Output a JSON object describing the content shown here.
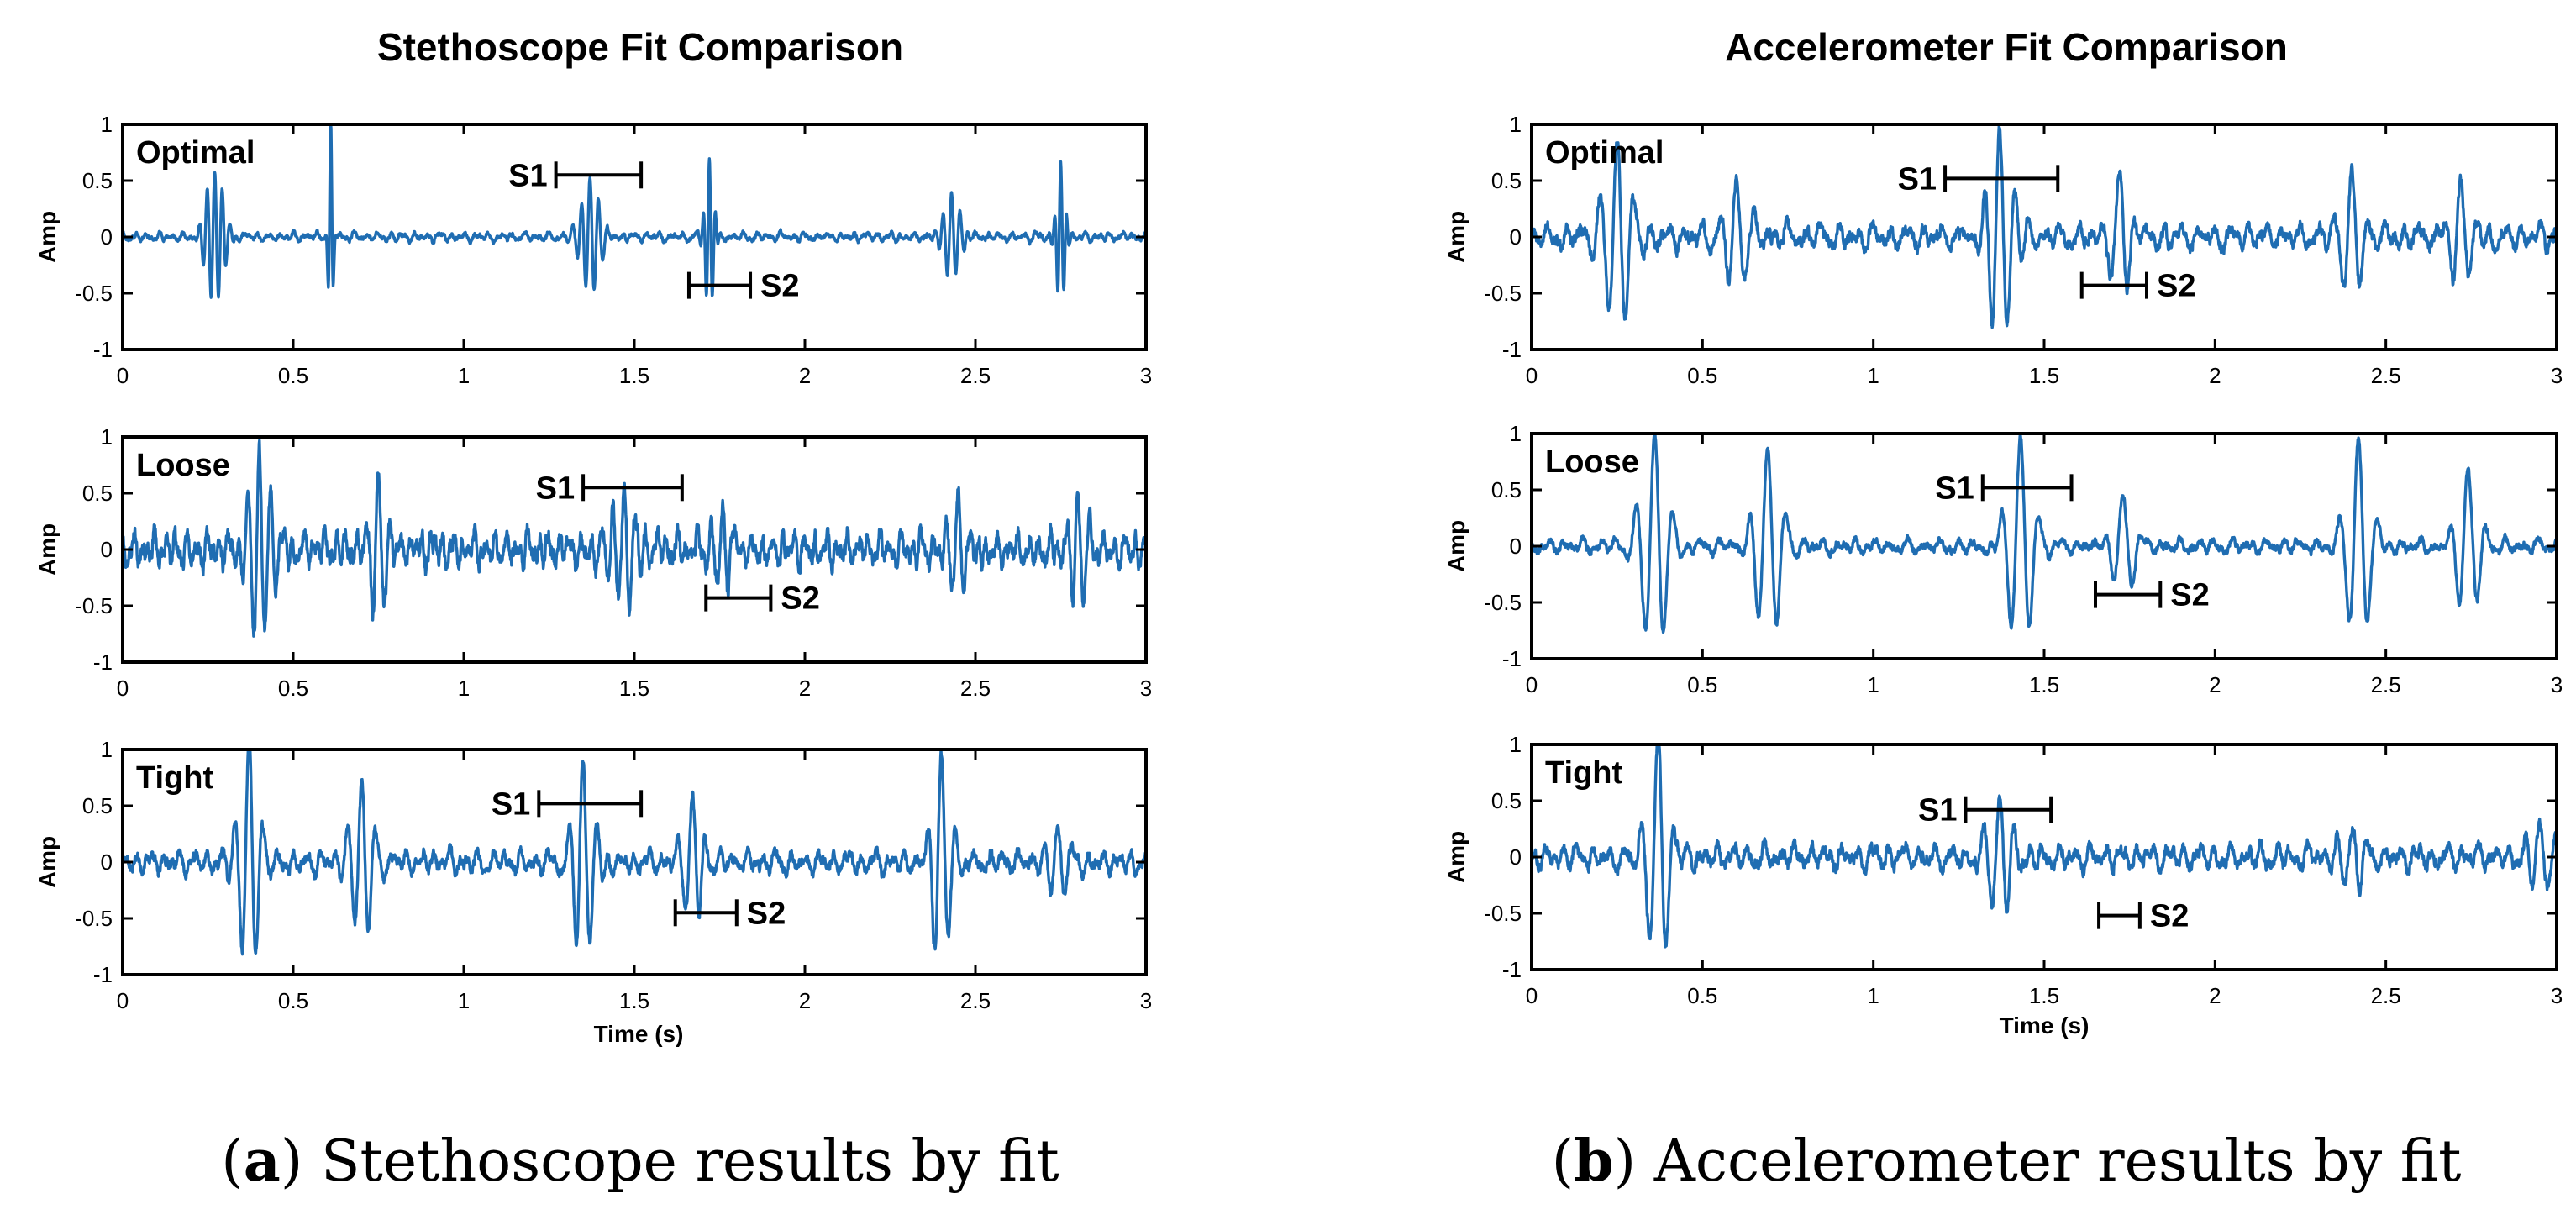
{
  "colors": {
    "trace": "#1f6db2",
    "axis": "#000000",
    "background": "#ffffff"
  },
  "common_axes": {
    "xlim": [
      0,
      3
    ],
    "ylim": [
      -1,
      1
    ],
    "x_ticks": [
      0,
      0.5,
      1,
      1.5,
      2,
      2.5,
      3
    ],
    "x_tick_labels": [
      "0",
      "0.5",
      "1",
      "1.5",
      "2",
      "2.5",
      "3"
    ],
    "y_ticks": [
      1,
      0.5,
      0,
      -0.5,
      -1
    ],
    "y_tick_labels": [
      "1",
      "0.5",
      "0",
      "-0.5",
      "-1"
    ],
    "ylabel": "Amp",
    "xlabel": "Time (s)"
  },
  "captions": {
    "a_letter": "a",
    "a_text": " Stethoscope results by fit",
    "b_letter": "b",
    "b_text": " Accelerometer results by fit"
  },
  "chart_data": [
    {
      "type": "line",
      "title": "Stethoscope Fit Comparison",
      "xlabel": "Time (s)",
      "ylabel": "Amp",
      "panels": [
        {
          "label": "Optimal",
          "xlim": [
            0,
            3
          ],
          "ylim": [
            -1,
            1
          ],
          "noise": 0.035,
          "bg_freq": 28,
          "seed": 11,
          "bursts": [
            {
              "t": 0.27,
              "amp": 0.6,
              "freq": 45,
              "width": 0.025
            },
            {
              "t": 0.61,
              "amp": 1.0,
              "freq": 60,
              "width": 0.006
            },
            {
              "t": 1.37,
              "amp": 0.55,
              "freq": 40,
              "width": 0.025
            },
            {
              "t": 1.72,
              "amp": 0.7,
              "freq": 55,
              "width": 0.012
            },
            {
              "t": 2.43,
              "amp": 0.35,
              "freq": 40,
              "width": 0.025
            },
            {
              "t": 2.75,
              "amp": 0.65,
              "freq": 55,
              "width": 0.012
            }
          ],
          "s1": {
            "label": "S1",
            "x_start": 1.27,
            "x_end": 1.52,
            "y": 0.55
          },
          "s2": {
            "label": "S2",
            "x_start": 1.66,
            "x_end": 1.84,
            "y": -0.43
          }
        },
        {
          "label": "Loose",
          "xlim": [
            0,
            3
          ],
          "ylim": [
            -1,
            1
          ],
          "noise": 0.14,
          "bg_freq": 32,
          "seed": 23,
          "bursts": [
            {
              "t": 0.4,
              "amp": 0.85,
              "freq": 30,
              "width": 0.03
            },
            {
              "t": 0.75,
              "amp": 0.55,
              "freq": 28,
              "width": 0.025
            },
            {
              "t": 1.47,
              "amp": 0.45,
              "freq": 30,
              "width": 0.035
            },
            {
              "t": 1.76,
              "amp": 0.45,
              "freq": 30,
              "width": 0.025
            },
            {
              "t": 2.45,
              "amp": 0.5,
              "freq": 30,
              "width": 0.03
            },
            {
              "t": 2.8,
              "amp": 0.65,
              "freq": 30,
              "width": 0.025
            }
          ],
          "s1": {
            "label": "S1",
            "x_start": 1.35,
            "x_end": 1.64,
            "y": 0.55
          },
          "s2": {
            "label": "S2",
            "x_start": 1.71,
            "x_end": 1.9,
            "y": -0.43
          }
        },
        {
          "label": "Tight",
          "xlim": [
            0,
            3
          ],
          "ylim": [
            -1,
            1
          ],
          "noise": 0.09,
          "bg_freq": 24,
          "seed": 37,
          "bursts": [
            {
              "t": 0.37,
              "amp": 1.0,
              "freq": 24,
              "width": 0.028
            },
            {
              "t": 0.7,
              "amp": 0.7,
              "freq": 24,
              "width": 0.03
            },
            {
              "t": 1.35,
              "amp": 0.95,
              "freq": 24,
              "width": 0.03
            },
            {
              "t": 1.67,
              "amp": 0.55,
              "freq": 24,
              "width": 0.025
            },
            {
              "t": 2.4,
              "amp": 1.0,
              "freq": 24,
              "width": 0.028
            },
            {
              "t": 2.74,
              "amp": 0.4,
              "freq": 24,
              "width": 0.025
            }
          ],
          "s1": {
            "label": "S1",
            "x_start": 1.22,
            "x_end": 1.52,
            "y": 0.52
          },
          "s2": {
            "label": "S2",
            "x_start": 1.62,
            "x_end": 1.8,
            "y": -0.45
          }
        }
      ]
    },
    {
      "type": "line",
      "title": "Accelerometer Fit Comparison",
      "xlabel": "Time (s)",
      "ylabel": "Amp",
      "panels": [
        {
          "label": "Optimal",
          "xlim": [
            0,
            3
          ],
          "ylim": [
            -1,
            1
          ],
          "noise": 0.1,
          "bg_freq": 20,
          "seed": 51,
          "bursts": [
            {
              "t": 0.25,
              "amp": 0.8,
              "freq": 20,
              "width": 0.035
            },
            {
              "t": 0.6,
              "amp": 0.45,
              "freq": 20,
              "width": 0.03
            },
            {
              "t": 1.37,
              "amp": 1.0,
              "freq": 22,
              "width": 0.035
            },
            {
              "t": 1.72,
              "amp": 0.6,
              "freq": 20,
              "width": 0.03
            },
            {
              "t": 2.4,
              "amp": 0.5,
              "freq": 20,
              "width": 0.03
            },
            {
              "t": 2.72,
              "amp": 0.6,
              "freq": 20,
              "width": 0.028
            }
          ],
          "s1": {
            "label": "S1",
            "x_start": 1.21,
            "x_end": 1.54,
            "y": 0.52
          },
          "s2": {
            "label": "S2",
            "x_start": 1.61,
            "x_end": 1.8,
            "y": -0.43
          }
        },
        {
          "label": "Loose",
          "xlim": [
            0,
            3
          ],
          "ylim": [
            -1,
            1
          ],
          "noise": 0.06,
          "bg_freq": 20,
          "seed": 67,
          "bursts": [
            {
              "t": 0.36,
              "amp": 1.0,
              "freq": 18,
              "width": 0.035
            },
            {
              "t": 0.69,
              "amp": 0.85,
              "freq": 18,
              "width": 0.035
            },
            {
              "t": 1.43,
              "amp": 1.0,
              "freq": 18,
              "width": 0.035
            },
            {
              "t": 1.73,
              "amp": 0.5,
              "freq": 18,
              "width": 0.03
            },
            {
              "t": 2.42,
              "amp": 0.95,
              "freq": 18,
              "width": 0.035
            },
            {
              "t": 2.74,
              "amp": 0.7,
              "freq": 18,
              "width": 0.03
            }
          ],
          "s1": {
            "label": "S1",
            "x_start": 1.32,
            "x_end": 1.58,
            "y": 0.52
          },
          "s2": {
            "label": "S2",
            "x_start": 1.65,
            "x_end": 1.84,
            "y": -0.43
          }
        },
        {
          "label": "Tight",
          "xlim": [
            0,
            3
          ],
          "ylim": [
            -1,
            1
          ],
          "noise": 0.1,
          "bg_freq": 22,
          "seed": 83,
          "bursts": [
            {
              "t": 0.37,
              "amp": 1.0,
              "freq": 20,
              "width": 0.03
            },
            {
              "t": 1.37,
              "amp": 0.55,
              "freq": 22,
              "width": 0.03
            },
            {
              "t": 2.4,
              "amp": 0.3,
              "freq": 22,
              "width": 0.03
            },
            {
              "t": 2.95,
              "amp": 0.3,
              "freq": 22,
              "width": 0.025
            }
          ],
          "s1": {
            "label": "S1",
            "x_start": 1.27,
            "x_end": 1.52,
            "y": 0.42
          },
          "s2": {
            "label": "S2",
            "x_start": 1.66,
            "x_end": 1.78,
            "y": -0.52
          }
        }
      ]
    }
  ]
}
